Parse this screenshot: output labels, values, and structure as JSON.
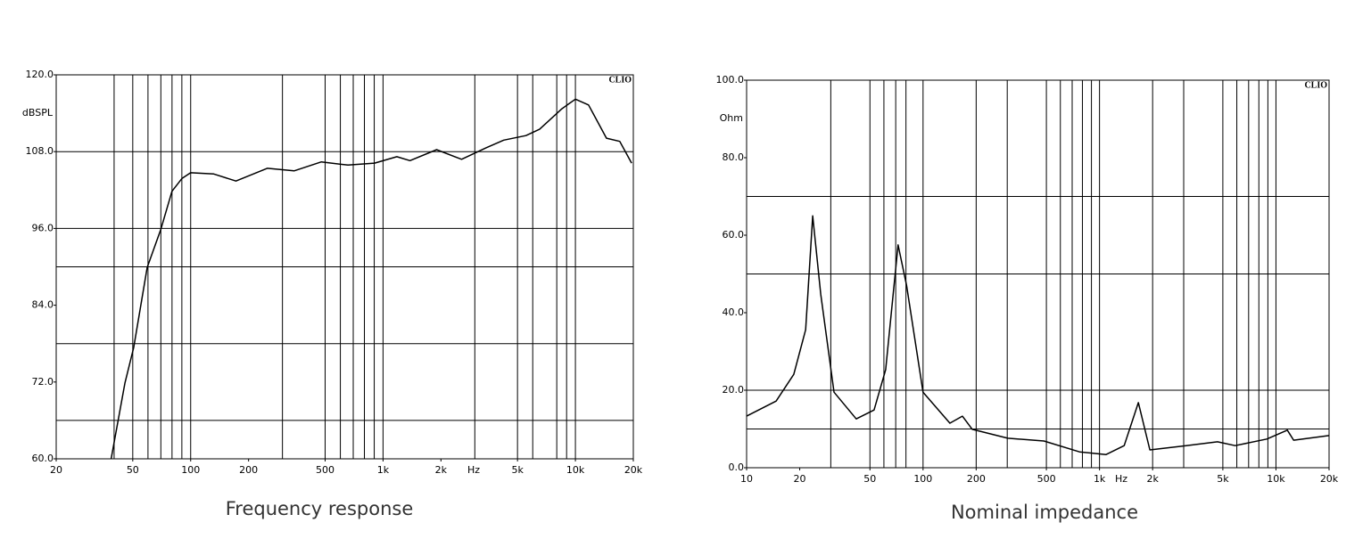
{
  "chart_data": [
    {
      "type": "line",
      "title": "Frequency response",
      "y_unit_label": "dBSPL",
      "x_unit_label": "Hz",
      "brand": "CLIO",
      "log_x": true,
      "color": "#000000",
      "xlim": [
        20,
        20000
      ],
      "ylim": [
        60,
        120
      ],
      "xticks": [
        20,
        50,
        100,
        200,
        500,
        {
          "value": 1000,
          "label": "1k"
        },
        {
          "value": 2000,
          "label": "2k"
        },
        {
          "value": 5000,
          "label": "5k"
        },
        {
          "value": 10000,
          "label": "10k"
        },
        {
          "value": 20000,
          "label": "20k"
        }
      ],
      "yticks": [
        {
          "value": 60,
          "label": "60.0"
        },
        {
          "value": 72,
          "label": "72.0"
        },
        {
          "value": 84,
          "label": "84.0"
        },
        {
          "value": 96,
          "label": "96.0"
        },
        {
          "value": 108,
          "label": "108.0"
        },
        {
          "value": 120,
          "label": "120.0"
        }
      ],
      "x_grid": [
        40,
        50,
        60,
        70,
        80,
        90,
        100,
        300,
        500,
        600,
        700,
        800,
        900,
        1000,
        3000,
        5000,
        6000,
        8000,
        9000,
        10000
      ],
      "y_grid": [
        66,
        78,
        90,
        96,
        108
      ],
      "x": [
        38.6,
        45.5,
        50.6,
        59.4,
        69.9,
        80,
        90,
        100,
        132,
        172,
        250,
        345,
        478,
        657,
        903,
        1180,
        1380,
        1900,
        2560,
        3430,
        4240,
        5530,
        6510,
        8500,
        10000,
        11700,
        14500,
        17000,
        19600
      ],
      "values": [
        60,
        71.8,
        77.4,
        89.9,
        95.8,
        101.8,
        103.8,
        104.7,
        104.5,
        103.4,
        105.4,
        105,
        106.4,
        105.9,
        106.2,
        107.2,
        106.6,
        108.3,
        106.8,
        108.6,
        109.8,
        110.5,
        111.5,
        114.7,
        116.2,
        115.3,
        110.1,
        109.6,
        106.2
      ]
    },
    {
      "type": "line",
      "title": "Nominal impedance",
      "y_unit_label": "Ohm",
      "x_unit_label": "Hz",
      "brand": "CLIO",
      "log_x": true,
      "color": "#000000",
      "xlim": [
        10,
        20000
      ],
      "ylim": [
        0,
        100
      ],
      "xticks": [
        10,
        20,
        50,
        100,
        200,
        500,
        {
          "value": 1000,
          "label": "1k"
        },
        {
          "value": 2000,
          "label": "2k"
        },
        {
          "value": 5000,
          "label": "5k"
        },
        {
          "value": 10000,
          "label": "10k"
        },
        {
          "value": 20000,
          "label": "20k"
        }
      ],
      "yticks": [
        {
          "value": 0,
          "label": "0.0"
        },
        {
          "value": 20,
          "label": "20.0"
        },
        {
          "value": 40,
          "label": "40.0"
        },
        {
          "value": 60,
          "label": "60.0"
        },
        {
          "value": 80,
          "label": "80.0"
        },
        {
          "value": 100,
          "label": "100.0"
        }
      ],
      "x_grid": [
        30,
        50,
        60,
        70,
        80,
        100,
        200,
        300,
        500,
        600,
        700,
        800,
        900,
        1000,
        2000,
        3000,
        5000,
        6000,
        7000,
        8000,
        9000,
        10000
      ],
      "y_grid": [
        10,
        20,
        50,
        70
      ],
      "x": [
        10,
        14.7,
        18.5,
        21.6,
        23.7,
        26.3,
        31.3,
        41.8,
        52.8,
        61.4,
        72.2,
        80.6,
        100,
        142,
        167,
        190,
        302,
        484,
        770,
        1090,
        1380,
        1660,
        1930,
        3100,
        4660,
        5870,
        8880,
        11600,
        12600,
        20000
      ],
      "values": [
        13.3,
        17.2,
        24.1,
        35.6,
        65,
        44.8,
        19.5,
        12.6,
        14.9,
        25.3,
        57.5,
        47.1,
        19.5,
        11.5,
        13.3,
        9.9,
        7.6,
        6.9,
        4.1,
        3.4,
        5.7,
        16.8,
        4.6,
        5.7,
        6.7,
        5.7,
        7.4,
        9.7,
        7.1,
        8.3
      ]
    }
  ]
}
